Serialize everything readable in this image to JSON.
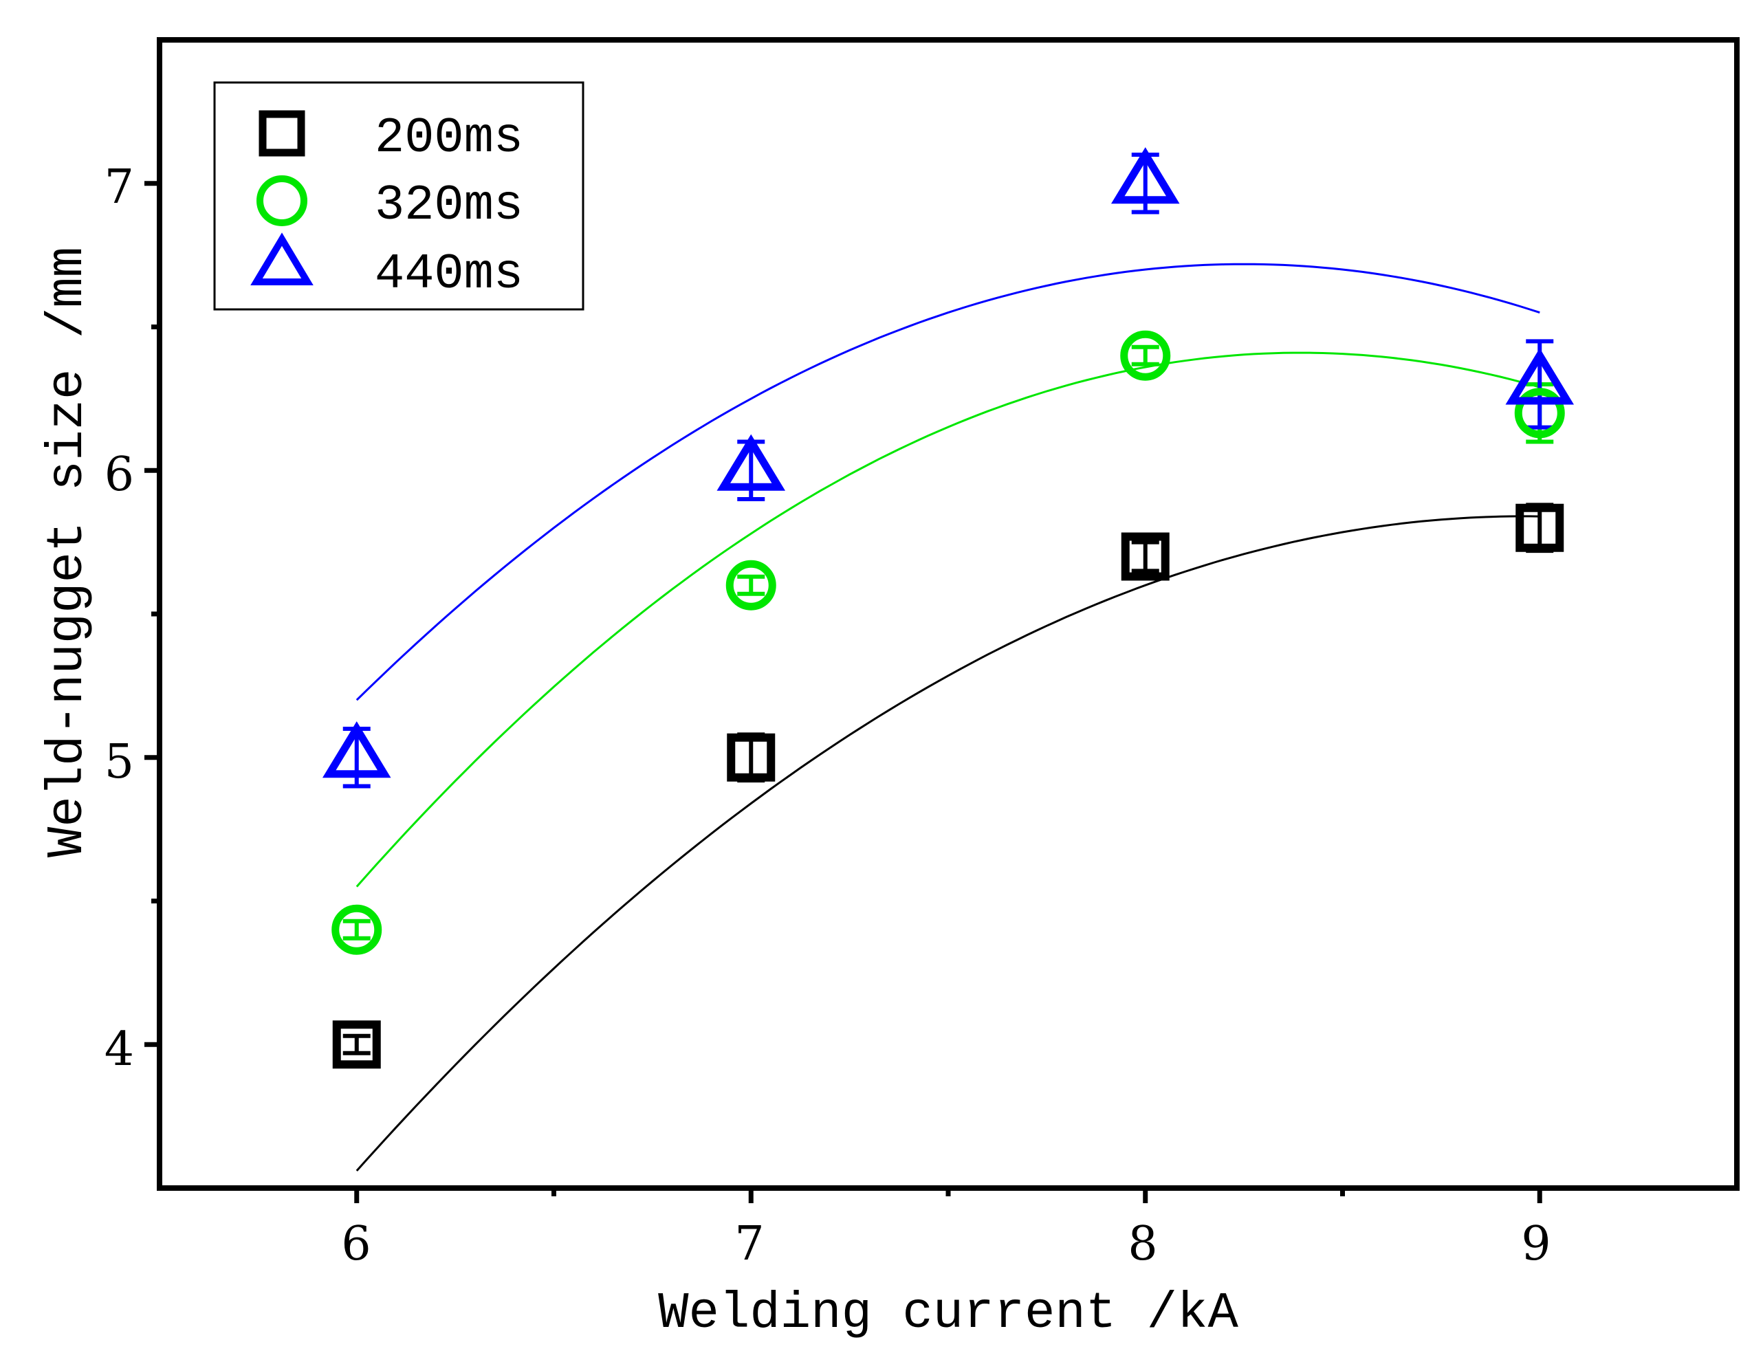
{
  "chart_data": {
    "type": "scatter",
    "title": "",
    "xlabel": "Welding current /kA",
    "ylabel": "Weld-nugget size /mm",
    "xlim": [
      5.5,
      9.5
    ],
    "ylim": [
      3.5,
      7.5
    ],
    "xticks": [
      6,
      7,
      8,
      9
    ],
    "yticks": [
      4,
      5,
      6,
      7
    ],
    "x_minor_ticks": [
      6.5,
      7.5,
      8.5
    ],
    "y_minor_ticks": [
      4.5,
      5.5,
      6.5
    ],
    "x_tick_labels": [
      "6",
      "7",
      "8",
      "9"
    ],
    "y_tick_labels": [
      "4",
      "5",
      "6",
      "7"
    ],
    "legend_position": "top-left",
    "grid": false,
    "series": [
      {
        "name": "200ms",
        "marker": "square",
        "color": "#000000",
        "x": [
          6,
          7,
          8,
          9
        ],
        "values": [
          4.0,
          5.0,
          5.7,
          5.8
        ],
        "errors": [
          0.03,
          0.08,
          0.05,
          0.08
        ],
        "fit": {
          "kind": "quadratic",
          "coef": [
            -0.26,
            4.66,
            -15.04
          ]
        }
      },
      {
        "name": "320ms",
        "marker": "circle",
        "color": "#00e600",
        "x": [
          6,
          7,
          8,
          9
        ],
        "values": [
          4.4,
          5.6,
          6.4,
          6.2
        ],
        "errors": [
          0.03,
          0.03,
          0.03,
          0.1
        ],
        "fit": {
          "kind": "quadratic",
          "coef": [
            -0.325,
            5.455,
            -16.48
          ]
        }
      },
      {
        "name": "440ms",
        "marker": "triangle",
        "color": "#0000ff",
        "x": [
          6,
          7,
          8,
          9
        ],
        "values": [
          5.0,
          6.0,
          7.0,
          6.3
        ],
        "errors": [
          0.1,
          0.1,
          0.1,
          0.15
        ],
        "fit": {
          "kind": "quadratic",
          "coef": [
            -0.3,
            4.95,
            -13.7
          ]
        }
      }
    ]
  }
}
